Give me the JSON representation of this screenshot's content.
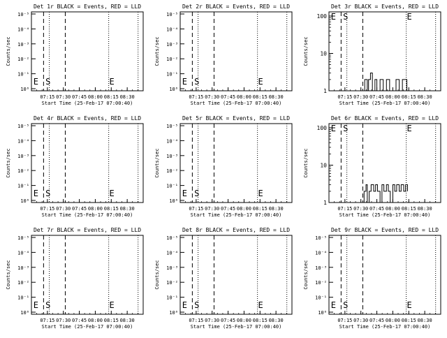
{
  "chart_data": [
    {
      "panel": "Det 1r",
      "type": "line",
      "title": "Det 1r BLACK = Events, RED = LLD",
      "xlabel": "Start Time (25-Feb-17 07:00:40)",
      "ylabel": "Counts/sec",
      "yscale": "log",
      "yticks": [
        "10⁰",
        "10⁻¹",
        "10⁻²",
        "10⁻³",
        "10⁻⁴",
        "10⁻⁵"
      ],
      "xticks": [
        "07:15",
        "07:30",
        "07:45",
        "08:00",
        "08:15",
        "08:30"
      ],
      "markers": [
        "E",
        "S",
        "E"
      ],
      "series": []
    },
    {
      "panel": "Det 2r",
      "type": "line",
      "title": "Det 2r BLACK = Events, RED = LLD",
      "xlabel": "Start Time (25-Feb-17 07:00:40)",
      "ylabel": "Counts/sec",
      "yscale": "log",
      "yticks": [
        "10⁰",
        "10⁻¹",
        "10⁻²",
        "10⁻³",
        "10⁻⁴",
        "10⁻⁵"
      ],
      "xticks": [
        "07:15",
        "07:30",
        "07:45",
        "08:00",
        "08:15",
        "08:30"
      ],
      "markers": [
        "E",
        "S",
        "E"
      ],
      "series": []
    },
    {
      "panel": "Det 3r",
      "type": "line",
      "title": "Det 3r BLACK = Events, RED = LLD",
      "xlabel": "Start Time (25-Feb-17 07:00:40)",
      "ylabel": "Counts/sec",
      "yscale": "log",
      "yticks": [
        "1",
        "10",
        "100"
      ],
      "xticks": [
        "07:15",
        "07:30",
        "07:45",
        "08:00",
        "08:15",
        "08:30"
      ],
      "markers": [
        "E",
        "S",
        "E"
      ],
      "series": [
        {
          "values": [
            [
              7.55,
              1
            ],
            [
              7.56,
              2
            ],
            [
              7.6,
              1
            ],
            [
              7.62,
              2
            ],
            [
              7.65,
              3
            ],
            [
              7.68,
              1
            ],
            [
              7.72,
              2
            ],
            [
              7.75,
              1
            ],
            [
              7.8,
              2
            ],
            [
              7.85,
              1
            ],
            [
              7.9,
              2
            ],
            [
              7.95,
              1
            ],
            [
              8.02,
              1
            ],
            [
              8.05,
              2
            ],
            [
              8.1,
              1
            ],
            [
              8.15,
              2
            ],
            [
              8.2,
              2
            ],
            [
              8.22,
              1
            ]
          ]
        }
      ]
    },
    {
      "panel": "Det 4r",
      "type": "line",
      "title": "Det 4r BLACK = Events, RED = LLD",
      "xlabel": "Start Time (25-Feb-17 07:00:40)",
      "ylabel": "Counts/sec",
      "yscale": "log",
      "yticks": [
        "10⁰",
        "10⁻¹",
        "10⁻²",
        "10⁻³",
        "10⁻⁴",
        "10⁻⁵"
      ],
      "xticks": [
        "07:15",
        "07:30",
        "07:45",
        "08:00",
        "08:15",
        "08:30"
      ],
      "markers": [
        "E",
        "S",
        "E"
      ],
      "series": []
    },
    {
      "panel": "Det 5r",
      "type": "line",
      "title": "Det 5r BLACK = Events, RED = LLD",
      "xlabel": "Start Time (25-Feb-17 07:00:40)",
      "ylabel": "Counts/sec",
      "yscale": "log",
      "yticks": [
        "10⁰",
        "10⁻¹",
        "10⁻²",
        "10⁻³",
        "10⁻⁴",
        "10⁻⁵"
      ],
      "xticks": [
        "07:15",
        "07:30",
        "07:45",
        "08:00",
        "08:15",
        "08:30"
      ],
      "markers": [
        "E",
        "S",
        "E"
      ],
      "series": []
    },
    {
      "panel": "Det 6r",
      "type": "line",
      "title": "Det 6r BLACK = Events, RED = LLD",
      "xlabel": "Start Time (25-Feb-17 07:00:40)",
      "ylabel": "Counts/sec",
      "yscale": "log",
      "yticks": [
        "1",
        "10",
        "100"
      ],
      "xticks": [
        "07:15",
        "07:30",
        "07:45",
        "08:00",
        "08:15",
        "08:30"
      ],
      "markers": [
        "E",
        "S",
        "E"
      ],
      "series": [
        {
          "values": [
            [
              7.55,
              2
            ],
            [
              7.58,
              3
            ],
            [
              7.6,
              1
            ],
            [
              7.63,
              2
            ],
            [
              7.66,
              3
            ],
            [
              7.7,
              2
            ],
            [
              7.73,
              3
            ],
            [
              7.76,
              2
            ],
            [
              7.8,
              1
            ],
            [
              7.83,
              3
            ],
            [
              7.86,
              2
            ],
            [
              7.9,
              3
            ],
            [
              7.93,
              2
            ],
            [
              7.96,
              1
            ],
            [
              8.0,
              3
            ],
            [
              8.03,
              2
            ],
            [
              8.06,
              3
            ],
            [
              8.1,
              2
            ],
            [
              8.13,
              3
            ],
            [
              8.17,
              2
            ],
            [
              8.2,
              3
            ],
            [
              8.23,
              2
            ]
          ]
        }
      ]
    },
    {
      "panel": "Det 7r",
      "type": "line",
      "title": "Det 7r BLACK = Events, RED = LLD",
      "xlabel": "Start Time (25-Feb-17 07:00:40)",
      "ylabel": "Counts/sec",
      "yscale": "log",
      "yticks": [
        "10⁰",
        "10⁻¹",
        "10⁻²",
        "10⁻³",
        "10⁻⁴",
        "10⁻⁵"
      ],
      "xticks": [
        "07:15",
        "07:30",
        "07:45",
        "08:00",
        "08:15",
        "08:30"
      ],
      "markers": [
        "E",
        "S",
        "E"
      ],
      "series": []
    },
    {
      "panel": "Det 8r",
      "type": "line",
      "title": "Det 8r BLACK = Events, RED = LLD",
      "xlabel": "Start Time (25-Feb-17 07:00:40)",
      "ylabel": "Counts/sec",
      "yscale": "log",
      "yticks": [
        "10⁰",
        "10⁻¹",
        "10⁻²",
        "10⁻³",
        "10⁻⁴",
        "10⁻⁵"
      ],
      "xticks": [
        "07:15",
        "07:30",
        "07:45",
        "08:00",
        "08:15",
        "08:30"
      ],
      "markers": [
        "E",
        "S",
        "E"
      ],
      "series": []
    },
    {
      "panel": "Det 9r",
      "type": "line",
      "title": "Det 9r BLACK = Events, RED = LLD",
      "xlabel": "Start Time (25-Feb-17 07:00:40)",
      "ylabel": "Counts/sec",
      "yscale": "log",
      "yticks": [
        "10⁰",
        "10⁻¹",
        "10⁻²",
        "10⁻³",
        "10⁻⁴",
        "10⁻⁵"
      ],
      "xticks": [
        "07:15",
        "07:30",
        "07:45",
        "08:00",
        "08:15",
        "08:30"
      ],
      "markers": [
        "E",
        "S",
        "E"
      ],
      "series": []
    }
  ]
}
